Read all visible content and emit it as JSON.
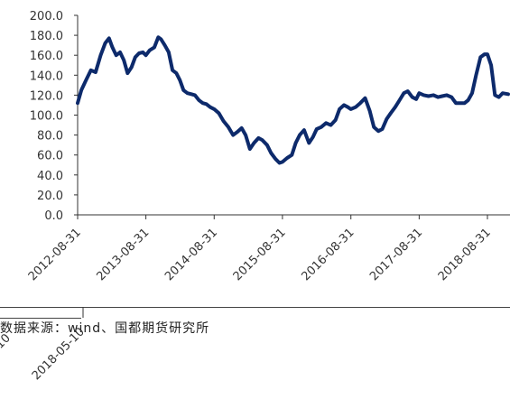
{
  "chart_data": {
    "type": "line",
    "title": "",
    "xlabel": "",
    "ylabel": "",
    "ylim": [
      0,
      200
    ],
    "yticks": [
      "0.0",
      "20.0",
      "40.0",
      "60.0",
      "80.0",
      "100.0",
      "120.0",
      "140.0",
      "160.0",
      "180.0",
      "200.0"
    ],
    "xticks": [
      "2012-08-31",
      "2013-08-31",
      "2014-08-31",
      "2015-08-31",
      "2016-08-31",
      "2017-08-31",
      "2018-08-31"
    ],
    "grid": false,
    "legend": "none",
    "line_color": "#0d2a6b",
    "series": [
      {
        "x": [
          "2012-08-31",
          "2012-09-20",
          "2012-10-15",
          "2012-11-10",
          "2012-12-05",
          "2013-01-01",
          "2013-01-25",
          "2013-02-15",
          "2013-03-05",
          "2013-03-25",
          "2013-04-15",
          "2013-05-05",
          "2013-05-25",
          "2013-06-15",
          "2013-07-05",
          "2013-07-25",
          "2013-08-15",
          "2013-08-31",
          "2013-09-20",
          "2013-10-15",
          "2013-11-05",
          "2013-11-20",
          "2013-12-10",
          "2013-12-31",
          "2014-01-20",
          "2014-02-10",
          "2014-03-01",
          "2014-03-20",
          "2014-04-10",
          "2014-05-01",
          "2014-05-20",
          "2014-06-10",
          "2014-07-01",
          "2014-07-20",
          "2014-08-10",
          "2014-08-31",
          "2014-09-25",
          "2014-10-20",
          "2014-11-15",
          "2014-12-10",
          "2015-01-01",
          "2015-01-25",
          "2015-02-15",
          "2015-03-10",
          "2015-04-01",
          "2015-04-25",
          "2015-05-15",
          "2015-06-10",
          "2015-07-01",
          "2015-07-25",
          "2015-08-15",
          "2015-08-31",
          "2015-09-25",
          "2015-10-20",
          "2015-11-10",
          "2015-12-01",
          "2015-12-25",
          "2016-01-20",
          "2016-02-10",
          "2016-03-01",
          "2016-03-25",
          "2016-04-20",
          "2016-05-15",
          "2016-06-10",
          "2016-07-01",
          "2016-07-25",
          "2016-08-15",
          "2016-08-31",
          "2016-09-25",
          "2016-10-20",
          "2016-11-15",
          "2016-12-10",
          "2017-01-01",
          "2017-01-25",
          "2017-02-15",
          "2017-03-10",
          "2017-04-01",
          "2017-04-25",
          "2017-05-15",
          "2017-06-10",
          "2017-07-01",
          "2017-07-25",
          "2017-08-15",
          "2017-08-31",
          "2017-09-25",
          "2017-10-20",
          "2017-11-15",
          "2017-12-10",
          "2018-01-01",
          "2018-01-25",
          "2018-02-20",
          "2018-03-15",
          "2018-04-10",
          "2018-05-01",
          "2018-05-20",
          "2018-06-10",
          "2018-07-01",
          "2018-07-25",
          "2018-08-15",
          "2018-08-31",
          "2018-09-20",
          "2018-10-10",
          "2018-10-31",
          "2018-11-20",
          "2018-12-20"
        ],
        "y": [
          112,
          125,
          135,
          145,
          143,
          160,
          172,
          177,
          168,
          160,
          163,
          155,
          142,
          148,
          158,
          162,
          163,
          160,
          165,
          168,
          178,
          176,
          170,
          163,
          145,
          142,
          135,
          125,
          122,
          121,
          120,
          115,
          112,
          111,
          108,
          106,
          102,
          94,
          88,
          80,
          83,
          87,
          80,
          66,
          72,
          77,
          75,
          70,
          62,
          56,
          52,
          53,
          57,
          60,
          72,
          80,
          85,
          72,
          78,
          86,
          88,
          92,
          90,
          95,
          106,
          110,
          108,
          106,
          108,
          112,
          117,
          104,
          88,
          84,
          86,
          96,
          102,
          108,
          114,
          122,
          124,
          118,
          116,
          122,
          120,
          119,
          120,
          118,
          119,
          120,
          118,
          112,
          112,
          112,
          115,
          122,
          140,
          158,
          161,
          161,
          150,
          120,
          118,
          122,
          121
        ]
      }
    ]
  },
  "ghost_labels": [
    "10",
    "2018-05-10"
  ],
  "source": "数据来源：wind、国都期货研究所"
}
